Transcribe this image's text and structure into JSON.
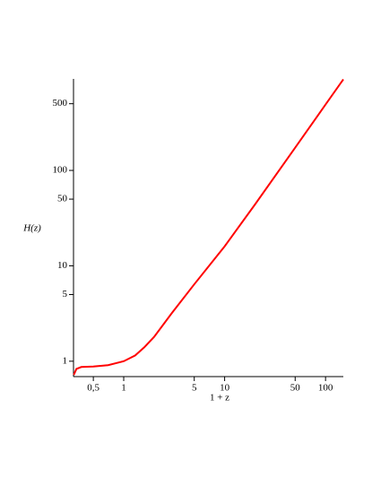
{
  "chart_data": {
    "type": "line",
    "x_label": "1 + z",
    "y_label": "H(z)",
    "log_x": true,
    "log_y": true,
    "x": [
      0.32,
      0.34,
      0.38,
      0.5,
      0.7,
      1,
      1.3,
      1.6,
      2,
      3,
      5,
      10,
      20,
      50,
      100,
      150
    ],
    "series": [
      {
        "name": "H(z)",
        "color": "#ff0000",
        "values": [
          0.72,
          0.83,
          0.87,
          0.88,
          0.91,
          1.0,
          1.15,
          1.4,
          1.8,
          3.2,
          6.4,
          16,
          44,
          173,
          490,
          900
        ]
      }
    ],
    "xlim": [
      0.318,
      150
    ],
    "ylim": [
      0.69,
      910
    ],
    "xticks": [
      {
        "value": 0.5,
        "label": "0,5"
      },
      1,
      5,
      10,
      50,
      100
    ],
    "yticks": [
      1,
      5,
      10,
      50,
      100,
      500
    ]
  }
}
